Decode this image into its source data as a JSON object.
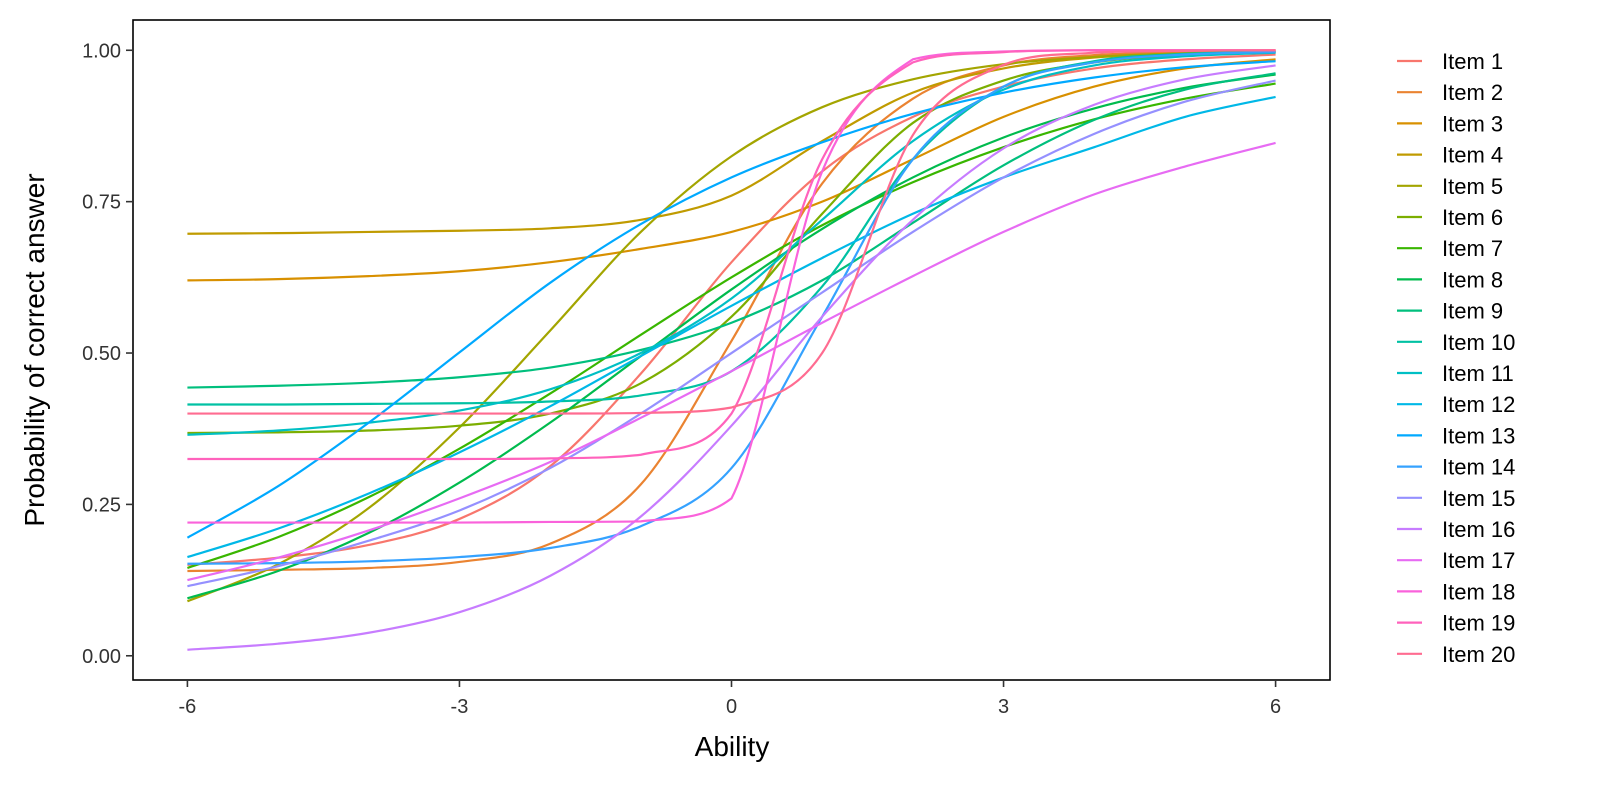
{
  "chart_data": {
    "type": "line",
    "xlabel": "Ability",
    "ylabel": "Probability of correct answer",
    "xlim": [
      -6.6,
      6.6
    ],
    "ylim": [
      -0.04,
      1.05
    ],
    "xticks": [
      -6,
      -3,
      0,
      3,
      6
    ],
    "xtick_labels": [
      "-6",
      "-3",
      "0",
      "3",
      "6"
    ],
    "yticks": [
      0,
      0.25,
      0.5,
      0.75,
      1
    ],
    "ytick_labels": [
      "0.00",
      "0.25",
      "0.50",
      "0.75",
      "1.00"
    ],
    "grid": false,
    "legend_position": "right",
    "x": [
      -6,
      -5,
      -4,
      -3,
      -2,
      -1,
      0,
      1,
      2,
      3,
      4,
      5,
      6
    ],
    "series": [
      {
        "name": "Item 1",
        "color": "#F8766D",
        "values": [
          0.15,
          0.162,
          0.183,
          0.226,
          0.313,
          0.466,
          0.65,
          0.8,
          0.89,
          0.94,
          0.97,
          0.985,
          0.993
        ]
      },
      {
        "name": "Item 2",
        "color": "#EA8331",
        "values": [
          0.14,
          0.142,
          0.145,
          0.155,
          0.185,
          0.283,
          0.52,
          0.78,
          0.92,
          0.975,
          0.992,
          0.997,
          0.999
        ]
      },
      {
        "name": "Item 3",
        "color": "#D89000",
        "values": [
          0.62,
          0.622,
          0.627,
          0.635,
          0.65,
          0.672,
          0.7,
          0.75,
          0.82,
          0.89,
          0.94,
          0.97,
          0.985
        ]
      },
      {
        "name": "Item 4",
        "color": "#C09B00",
        "values": [
          0.697,
          0.698,
          0.7,
          0.702,
          0.706,
          0.72,
          0.76,
          0.85,
          0.93,
          0.97,
          0.988,
          0.995,
          0.998
        ]
      },
      {
        "name": "Item 5",
        "color": "#A3A500",
        "values": [
          0.09,
          0.151,
          0.244,
          0.377,
          0.537,
          0.7,
          0.825,
          0.906,
          0.952,
          0.977,
          0.989,
          0.995,
          0.998
        ]
      },
      {
        "name": "Item 6",
        "color": "#7CAE00",
        "values": [
          0.368,
          0.369,
          0.372,
          0.38,
          0.4,
          0.45,
          0.56,
          0.73,
          0.88,
          0.95,
          0.98,
          0.992,
          0.997
        ]
      },
      {
        "name": "Item 7",
        "color": "#39B600",
        "values": [
          0.145,
          0.196,
          0.262,
          0.342,
          0.433,
          0.53,
          0.625,
          0.711,
          0.782,
          0.84,
          0.886,
          0.92,
          0.945
        ]
      },
      {
        "name": "Item 8",
        "color": "#00BB4E",
        "values": [
          0.095,
          0.14,
          0.203,
          0.286,
          0.385,
          0.495,
          0.605,
          0.705,
          0.79,
          0.856,
          0.904,
          0.938,
          0.96
        ]
      },
      {
        "name": "Item 9",
        "color": "#00BF7D",
        "values": [
          0.443,
          0.446,
          0.451,
          0.46,
          0.476,
          0.505,
          0.55,
          0.62,
          0.715,
          0.81,
          0.885,
          0.935,
          0.962
        ]
      },
      {
        "name": "Item 10",
        "color": "#00C1A3",
        "values": [
          0.415,
          0.415,
          0.416,
          0.417,
          0.42,
          0.43,
          0.47,
          0.61,
          0.82,
          0.94,
          0.982,
          0.994,
          0.998
        ]
      },
      {
        "name": "Item 11",
        "color": "#00BFC4",
        "values": [
          0.365,
          0.372,
          0.385,
          0.405,
          0.44,
          0.5,
          0.59,
          0.72,
          0.85,
          0.935,
          0.975,
          0.99,
          0.996
        ]
      },
      {
        "name": "Item 12",
        "color": "#00B8E7",
        "values": [
          0.163,
          0.21,
          0.268,
          0.336,
          0.412,
          0.495,
          0.578,
          0.657,
          0.73,
          0.79,
          0.84,
          0.89,
          0.923
        ]
      },
      {
        "name": "Item 13",
        "color": "#00A9FF",
        "values": [
          0.195,
          0.28,
          0.385,
          0.501,
          0.616,
          0.713,
          0.79,
          0.848,
          0.895,
          0.93,
          0.955,
          0.972,
          0.982
        ]
      },
      {
        "name": "Item 14",
        "color": "#35A2FF",
        "values": [
          0.152,
          0.153,
          0.156,
          0.163,
          0.178,
          0.214,
          0.31,
          0.56,
          0.82,
          0.94,
          0.98,
          0.993,
          0.997
        ]
      },
      {
        "name": "Item 15",
        "color": "#9590FF",
        "values": [
          0.115,
          0.148,
          0.19,
          0.24,
          0.31,
          0.4,
          0.5,
          0.6,
          0.7,
          0.79,
          0.862,
          0.915,
          0.95
        ]
      },
      {
        "name": "Item 16",
        "color": "#C77CFF",
        "values": [
          0.01,
          0.02,
          0.038,
          0.072,
          0.132,
          0.23,
          0.38,
          0.56,
          0.72,
          0.838,
          0.91,
          0.952,
          0.975
        ]
      },
      {
        "name": "Item 17",
        "color": "#E76BF3",
        "values": [
          0.125,
          0.162,
          0.207,
          0.26,
          0.32,
          0.393,
          0.47,
          0.55,
          0.627,
          0.7,
          0.762,
          0.808,
          0.847
        ]
      },
      {
        "name": "Item 18",
        "color": "#FA62DB",
        "values": [
          0.22,
          0.22,
          0.22,
          0.22,
          0.221,
          0.222,
          0.26,
          0.8,
          0.985,
          0.998,
          1.0,
          1.0,
          1.0
        ]
      },
      {
        "name": "Item 19",
        "color": "#FF62BC",
        "values": [
          0.325,
          0.325,
          0.325,
          0.325,
          0.326,
          0.332,
          0.4,
          0.82,
          0.98,
          0.997,
          1.0,
          1.0,
          1.0
        ]
      },
      {
        "name": "Item 20",
        "color": "#FF6C91",
        "values": [
          0.4,
          0.4,
          0.4,
          0.4,
          0.4,
          0.401,
          0.41,
          0.5,
          0.86,
          0.976,
          0.996,
          0.999,
          1.0
        ]
      }
    ]
  }
}
